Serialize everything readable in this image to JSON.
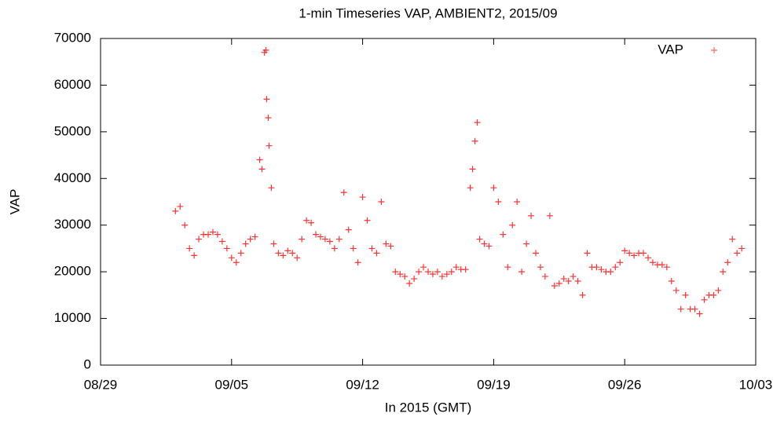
{
  "chart_data": {
    "type": "scatter",
    "title": "1-min Timeseries VAP, AMBIENT2, 2015/09",
    "xlabel": "In 2015 (GMT)",
    "ylabel": "VAP",
    "xlim": [
      "08/29",
      "10/03"
    ],
    "xticks": [
      "08/29",
      "09/05",
      "09/12",
      "09/19",
      "09/26",
      "10/03"
    ],
    "ylim": [
      0,
      70000
    ],
    "yticks": [
      0,
      10000,
      20000,
      30000,
      40000,
      50000,
      60000,
      70000
    ],
    "legend": "upper right",
    "series": [
      {
        "name": "VAP",
        "color": "#ff0000",
        "x": [
          "09/02 00:00",
          "09/02 06:00",
          "09/02 12:00",
          "09/02 18:00",
          "09/03 00:00",
          "09/03 06:00",
          "09/03 12:00",
          "09/03 18:00",
          "09/04 00:00",
          "09/04 06:00",
          "09/04 12:00",
          "09/04 18:00",
          "09/05 00:00",
          "09/05 06:00",
          "09/05 12:00",
          "09/05 18:00",
          "09/06 00:00",
          "09/06 06:00",
          "09/06 12:00",
          "09/06 18:00",
          "09/07 00:00",
          "09/07 06:00",
          "09/07 12:00",
          "09/07 18:00",
          "09/08 00:00",
          "09/08 06:00",
          "09/08 12:00",
          "09/08 18:00",
          "09/09 00:00",
          "09/09 06:00",
          "09/09 12:00",
          "09/09 18:00",
          "09/10 00:00",
          "09/10 06:00",
          "09/10 12:00",
          "09/10 18:00",
          "09/11 00:00",
          "09/11 06:00",
          "09/11 12:00",
          "09/11 18:00",
          "09/12 00:00",
          "09/12 06:00",
          "09/12 12:00",
          "09/12 18:00",
          "09/13 00:00",
          "09/13 06:00",
          "09/13 12:00",
          "09/13 18:00",
          "09/14 00:00",
          "09/14 06:00",
          "09/14 12:00",
          "09/14 18:00",
          "09/15 00:00",
          "09/15 06:00",
          "09/15 12:00",
          "09/15 18:00",
          "09/16 00:00",
          "09/16 06:00",
          "09/16 12:00",
          "09/16 18:00",
          "09/17 00:00",
          "09/17 06:00",
          "09/17 12:00",
          "09/17 18:00",
          "09/18 00:00",
          "09/18 06:00",
          "09/18 12:00",
          "09/18 18:00",
          "09/19 00:00",
          "09/19 06:00",
          "09/19 12:00",
          "09/19 18:00",
          "09/20 00:00",
          "09/20 06:00",
          "09/20 12:00",
          "09/20 18:00",
          "09/21 00:00",
          "09/21 06:00",
          "09/21 12:00",
          "09/21 18:00",
          "09/22 00:00",
          "09/22 06:00",
          "09/22 12:00",
          "09/22 18:00",
          "09/23 00:00",
          "09/23 06:00",
          "09/23 12:00",
          "09/23 18:00",
          "09/24 00:00",
          "09/24 06:00",
          "09/24 12:00",
          "09/24 18:00",
          "09/25 00:00",
          "09/25 06:00",
          "09/25 12:00",
          "09/25 18:00",
          "09/26 00:00",
          "09/26 06:00",
          "09/26 12:00",
          "09/26 18:00",
          "09/27 00:00",
          "09/27 06:00",
          "09/27 12:00",
          "09/27 18:00",
          "09/28 00:00",
          "09/28 06:00",
          "09/28 12:00",
          "09/28 18:00",
          "09/29 00:00",
          "09/29 06:00",
          "09/29 12:00",
          "09/29 18:00",
          "09/30 00:00",
          "09/30 06:00",
          "09/30 12:00",
          "09/30 18:00",
          "10/01 00:00",
          "10/01 06:00",
          "10/01 12:00",
          "10/01 18:00",
          "10/02 00:00",
          "10/02 06:00",
          "09/06 15:00",
          "09/06 20:00",
          "09/06 21:00",
          "09/06 23:00",
          "09/07 03:00",
          "09/17 21:00",
          "09/18 03:00"
        ],
        "values": [
          33000,
          34000,
          30000,
          25000,
          23500,
          27000,
          28000,
          28000,
          28500,
          28000,
          26500,
          25000,
          23000,
          22000,
          24000,
          26000,
          27000,
          27500,
          44000,
          67000,
          47000,
          26000,
          24000,
          23500,
          24500,
          24000,
          23000,
          27000,
          31000,
          30500,
          28000,
          27500,
          27000,
          26500,
          25000,
          27000,
          37000,
          29000,
          25000,
          22000,
          36000,
          31000,
          25000,
          24000,
          35000,
          26000,
          25500,
          20000,
          19500,
          19000,
          17500,
          18500,
          20000,
          21000,
          20000,
          19500,
          20000,
          19000,
          19500,
          20000,
          21000,
          20500,
          20500,
          38000,
          48000,
          27000,
          26000,
          25500,
          38000,
          35000,
          28000,
          21000,
          30000,
          35000,
          20000,
          26000,
          32000,
          24000,
          21000,
          19000,
          32000,
          17000,
          17500,
          18500,
          18000,
          19000,
          18000,
          15000,
          24000,
          21000,
          21000,
          20500,
          20000,
          20000,
          21000,
          22000,
          24500,
          24000,
          23500,
          24000,
          24000,
          23000,
          22000,
          21500,
          21500,
          21000,
          18000,
          16000,
          12000,
          15000,
          12000,
          12000,
          11000,
          14000,
          15000,
          15000,
          16000,
          20000,
          22000,
          27000,
          24000,
          25000,
          42000,
          67500,
          57000,
          53000,
          38000,
          42000,
          52000
        ]
      }
    ]
  }
}
